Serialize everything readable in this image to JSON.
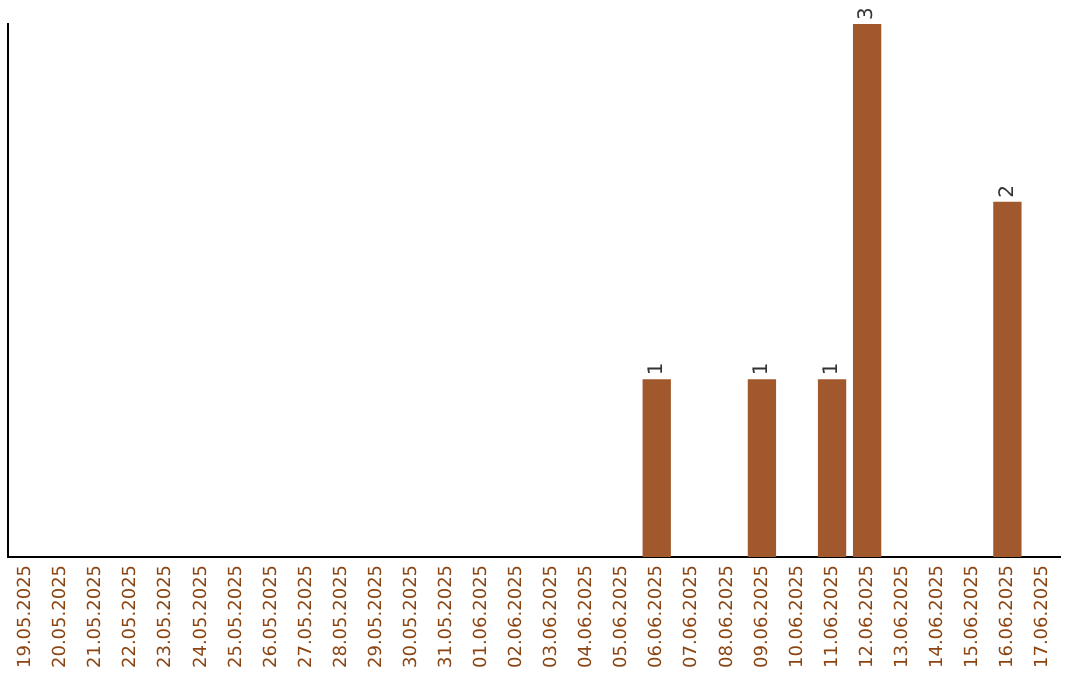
{
  "chart_data": {
    "type": "bar",
    "categories": [
      "19.05.2025",
      "20.05.2025",
      "21.05.2025",
      "22.05.2025",
      "23.05.2025",
      "24.05.2025",
      "25.05.2025",
      "26.05.2025",
      "27.05.2025",
      "28.05.2025",
      "29.05.2025",
      "30.05.2025",
      "31.05.2025",
      "01.06.2025",
      "02.06.2025",
      "03.06.2025",
      "04.06.2025",
      "05.06.2025",
      "06.06.2025",
      "07.06.2025",
      "08.06.2025",
      "09.06.2025",
      "10.06.2025",
      "11.06.2025",
      "12.06.2025",
      "13.06.2025",
      "14.06.2025",
      "15.06.2025",
      "16.06.2025",
      "17.06.2025"
    ],
    "values": [
      null,
      null,
      null,
      null,
      null,
      null,
      null,
      null,
      null,
      null,
      null,
      null,
      null,
      null,
      null,
      null,
      null,
      null,
      1,
      null,
      null,
      1,
      null,
      1,
      3,
      null,
      null,
      null,
      2,
      null
    ],
    "color": "#a0582c",
    "data_labels": true,
    "grid": false,
    "legend": false
  }
}
